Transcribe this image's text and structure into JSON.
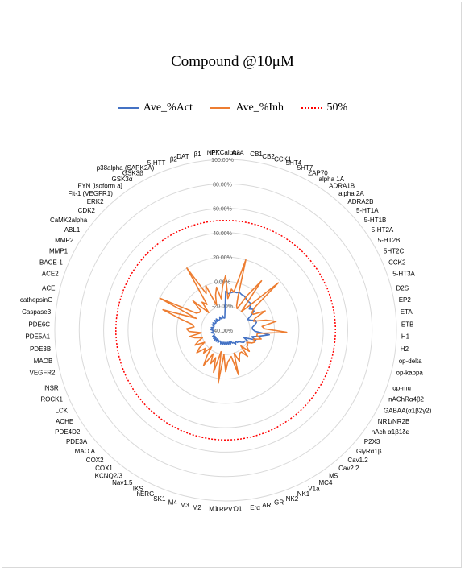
{
  "chart_data": {
    "type": "radar",
    "title": "Compound @10μM",
    "legend_position": "top",
    "radial_range": [
      -40,
      100
    ],
    "radial_ticks": [
      "100.00%",
      "80.00%",
      "60.00%",
      "40.00%",
      "20.00%",
      "0.00%",
      "-20.00%",
      "-40.00%"
    ],
    "categories": [
      "PKCalpha",
      "A2A",
      "CB1",
      "CB2",
      "CCK1",
      "5HT4",
      "5HT7",
      "ZAP70",
      "alpha 1A",
      "ADRA1B",
      "alpha 2A",
      "ADRA2B",
      "5-HT1A",
      "5-HT1B",
      "5-HT2A",
      "5-HT2B",
      "5HT2C",
      "CCK2",
      "5-HT3A",
      "D2S",
      "EP2",
      "ETA",
      "ETB",
      "H1",
      "H2",
      "op-delta",
      "op-kappa",
      "op-mu",
      "nAChRα4β2",
      "GABAA(α1β2γ2)",
      "NR1/NR2B",
      "nAch α1β1δε",
      "P2X3",
      "GlyRα1β",
      "Cav1.2",
      "Cav2.2",
      "M5",
      "MC4",
      "V1a",
      "NK1",
      "NK2",
      "GR",
      "AR",
      "Erα",
      "D1",
      "TRPV1",
      "M1",
      "M2",
      "M3",
      "M4",
      "SK1",
      "hERG",
      "IKS",
      "Nav1.5",
      "KCNQ2/3",
      "COX1",
      "COX2",
      "MAO A",
      "PDE3A",
      "PDE4D2",
      "ACHE",
      "LCK",
      "ROCK1",
      "INSR",
      "VEGFR2",
      "MAOB",
      "PDE3B",
      "PDE5A1",
      "PDE6C",
      "Caspase3",
      "cathepsinG",
      "ACE",
      "ACE2",
      "BACE-1",
      "MMP1",
      "MMP2",
      "ABL1",
      "CaMK2alpha",
      "CDK2",
      "ERK2",
      "Flt-1 (VEGFR1)",
      "FYN [isoform a]",
      "GSK3α",
      "GSK3β",
      "p38alpha (SAPK2A)",
      "5-HTT",
      "β2",
      "DAT",
      "β1",
      "NET"
    ],
    "series": [
      {
        "name": "Ave_%Act",
        "color": "#4472c4",
        "values": [
          -8,
          -10,
          -9,
          -8,
          -8,
          -7,
          -8,
          -8,
          -9,
          -10,
          -10,
          -10,
          -14,
          -12,
          -12,
          -16,
          -20,
          -18,
          -14,
          -14,
          -16,
          -18,
          -18,
          -16,
          -4,
          -12,
          -18,
          -14,
          -24,
          -20,
          -22,
          -22,
          -24,
          -26,
          -26,
          -28,
          -26,
          -28,
          -28,
          -30,
          -28,
          -30,
          -28,
          -30,
          -28,
          -30,
          -28,
          -30,
          -28,
          -30,
          -28,
          -30,
          -30,
          -28,
          -30,
          -28,
          -30,
          -28,
          -30,
          -28,
          -30,
          -28,
          -30,
          -30,
          -30,
          -28,
          -30,
          -30,
          -28,
          -30,
          -28,
          -30,
          -30,
          -28,
          -30,
          -28,
          -30,
          -30,
          -28,
          -30,
          -28,
          -30,
          -30,
          -30,
          -28,
          -30,
          -30,
          -28,
          -30,
          -30
        ]
      },
      {
        "name": "Ave_%Inh",
        "color": "#ed7d31",
        "values": [
          5,
          -14,
          -6,
          -8,
          20,
          -10,
          -18,
          -20,
          -6,
          10,
          -20,
          -12,
          18,
          -10,
          -14,
          -14,
          -4,
          -14,
          -16,
          -6,
          2,
          -10,
          -8,
          10,
          -14,
          -14,
          -10,
          -16,
          -14,
          -16,
          -20,
          -18,
          -18,
          -14,
          -22,
          -12,
          -18,
          -18,
          -16,
          -12,
          -20,
          -2,
          -18,
          -16,
          -14,
          -6,
          -20,
          4,
          -22,
          -4,
          -16,
          -10,
          -18,
          -6,
          -14,
          -22,
          -14,
          -18,
          -10,
          -14,
          -20,
          -12,
          -16,
          -20,
          -14,
          -10,
          -20,
          -10,
          -8,
          -14,
          -12,
          -2,
          14,
          -14,
          20,
          -12,
          -14,
          -14,
          -4,
          -20,
          -10,
          -14,
          20,
          -6,
          0,
          -18,
          -10,
          -4,
          -14,
          -4
        ]
      },
      {
        "name": "50%",
        "color": "#ff0000",
        "values": [
          50,
          50,
          50,
          50,
          50,
          50,
          50,
          50,
          50,
          50,
          50,
          50,
          50,
          50,
          50,
          50,
          50,
          50,
          50,
          50,
          50,
          50,
          50,
          50,
          50,
          50,
          50,
          50,
          50,
          50,
          50,
          50,
          50,
          50,
          50,
          50,
          50,
          50,
          50,
          50,
          50,
          50,
          50,
          50,
          50,
          50,
          50,
          50,
          50,
          50,
          50,
          50,
          50,
          50,
          50,
          50,
          50,
          50,
          50,
          50,
          50,
          50,
          50,
          50,
          50,
          50,
          50,
          50,
          50,
          50,
          50,
          50,
          50,
          50,
          50,
          50,
          50,
          50,
          50,
          50,
          50,
          50,
          50,
          50,
          50,
          50,
          50,
          50,
          50,
          50
        ]
      }
    ]
  }
}
